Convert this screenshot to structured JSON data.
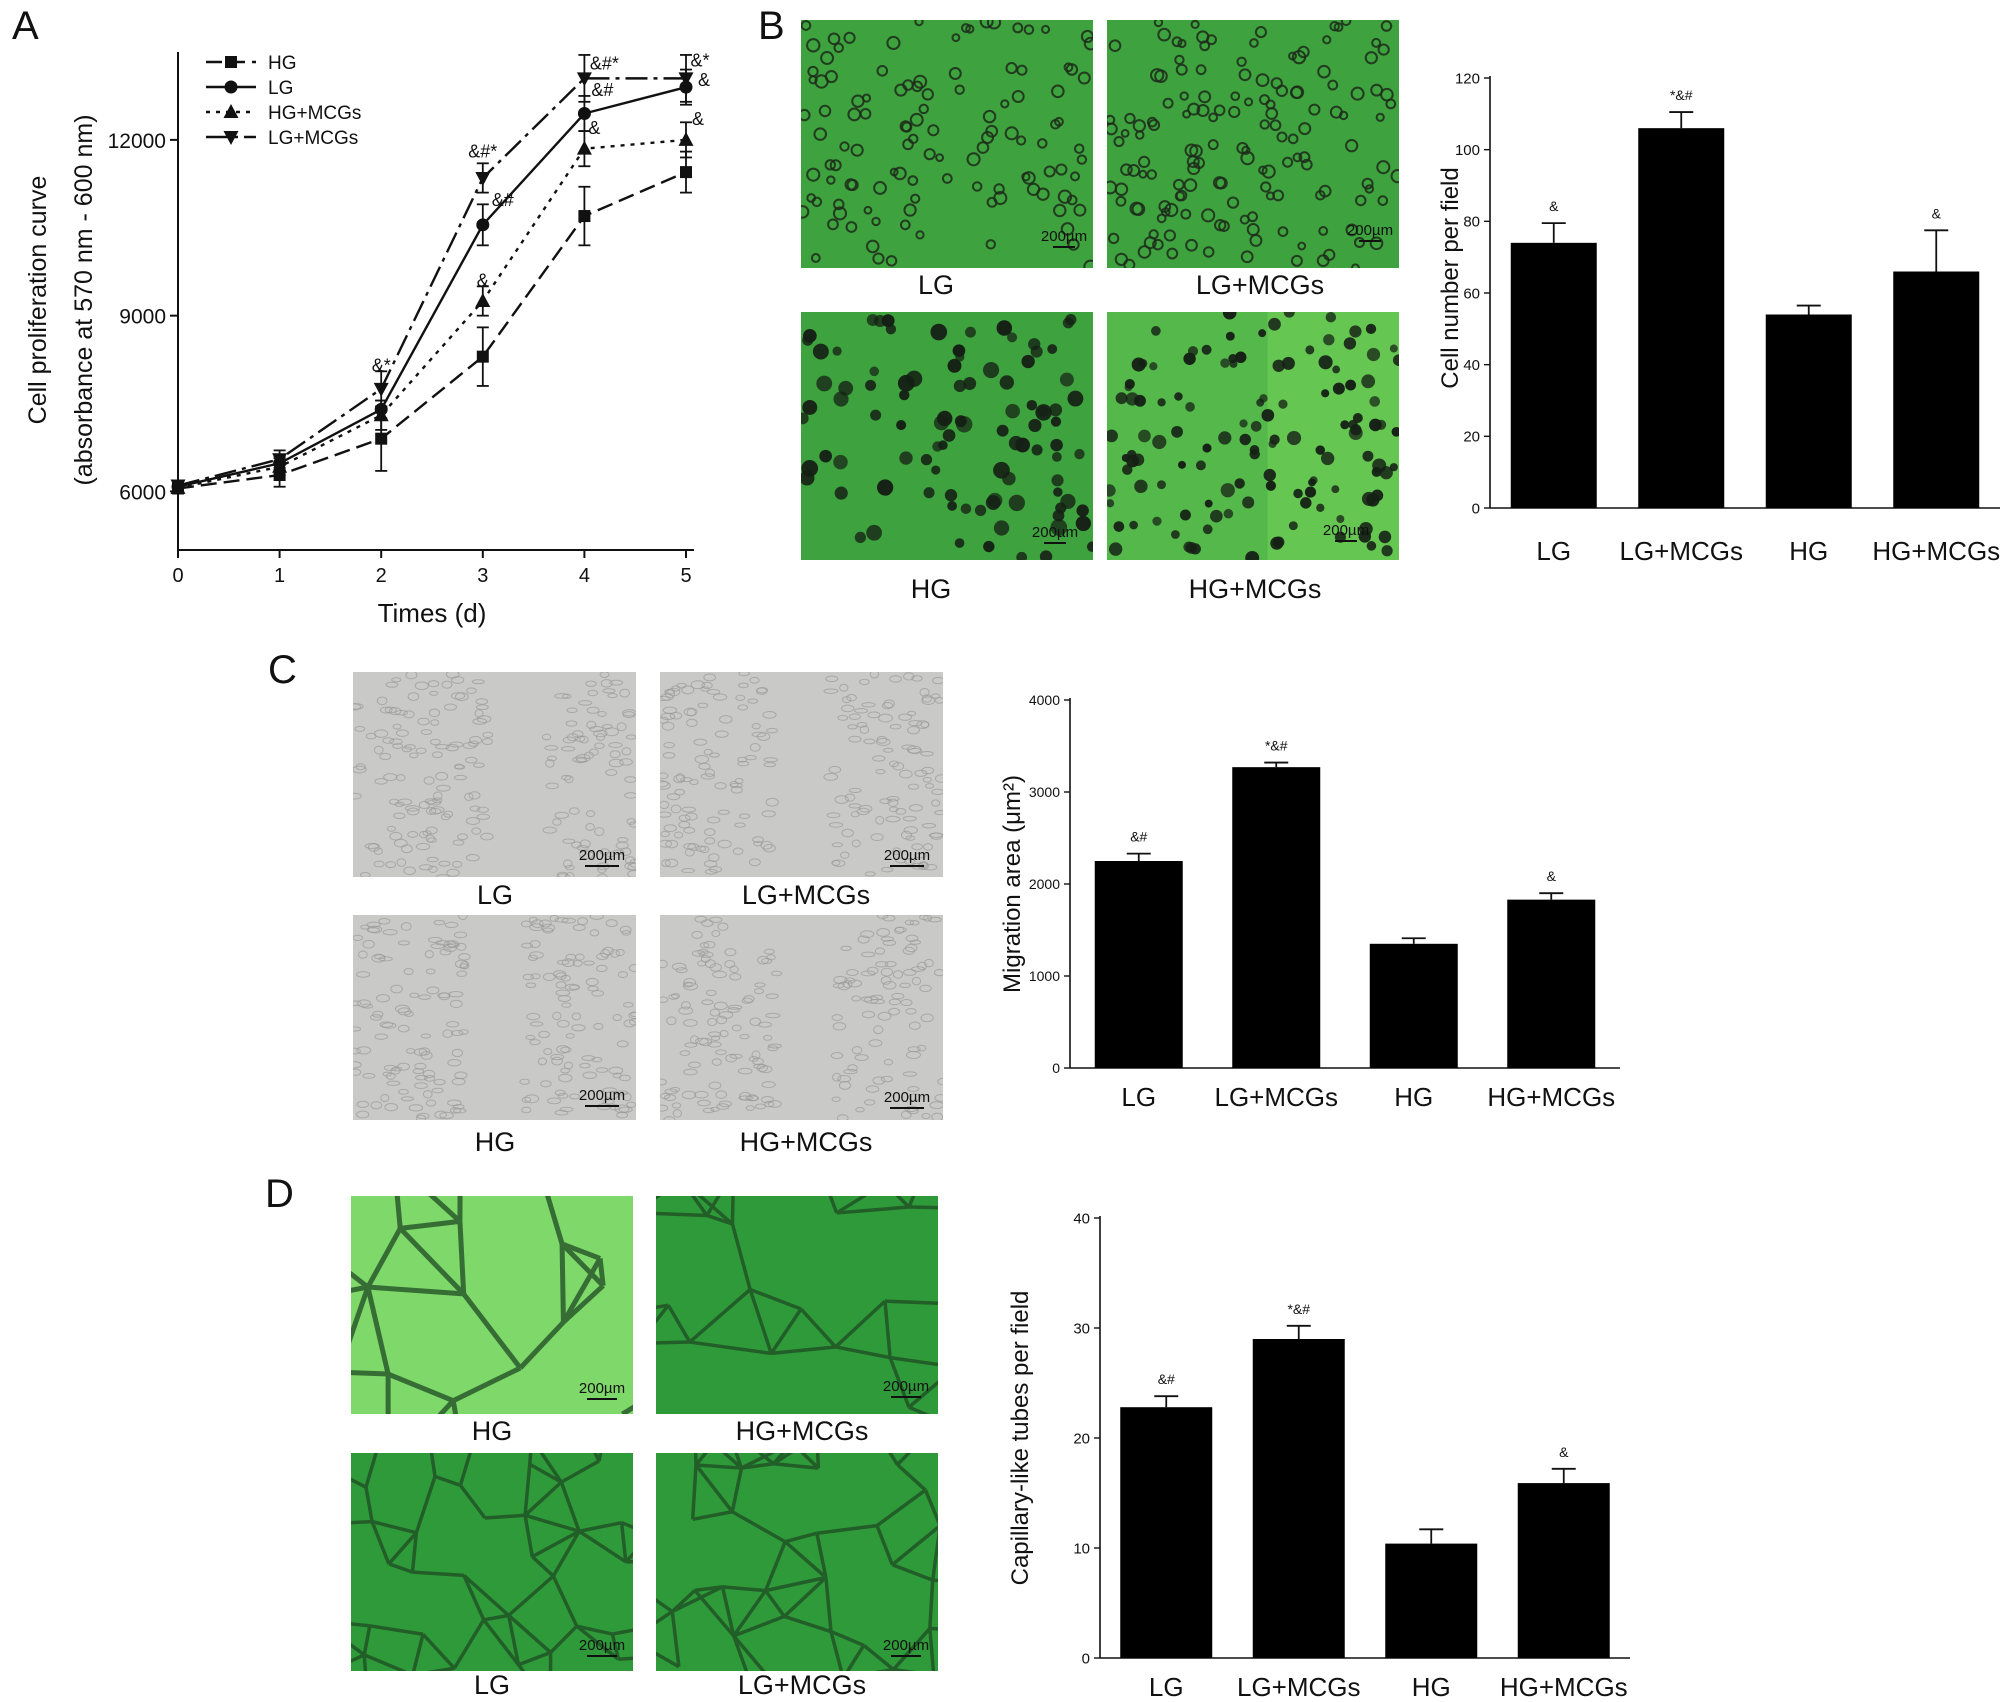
{
  "panels": {
    "a": {
      "letter": "A"
    },
    "b": {
      "letter": "B"
    },
    "c": {
      "letter": "C"
    },
    "d": {
      "letter": "D"
    }
  },
  "scale_label": "200µm",
  "images": {
    "b": [
      "LG",
      "LG+MCGs",
      "HG",
      "HG+MCGs"
    ],
    "c": [
      "LG",
      "LG+MCGs",
      "HG",
      "HG+MCGs"
    ],
    "d": [
      "HG",
      "HG+MCGs",
      "LG",
      "LG+MCGs"
    ]
  },
  "colors": {
    "bar_fill": "#000000",
    "green_bg": "#3ea23e",
    "green_bright": "#7ed86a",
    "gray_bg": "#c9c9c7"
  },
  "chart_data": [
    {
      "id": "A",
      "type": "line",
      "title": "",
      "xlabel": "Times (d)",
      "ylabel": "Cell proliferation curve",
      "ylabel2": "(absorbance at 570 nm - 600 nm)",
      "x": [
        0,
        1,
        2,
        3,
        4,
        5
      ],
      "xlim": [
        0,
        5
      ],
      "ylim": [
        5000,
        13500
      ],
      "yticks": [
        6000,
        9000,
        12000
      ],
      "grid": false,
      "legend_position": "top-left",
      "series": [
        {
          "name": "HG",
          "values": [
            6050,
            6280,
            6900,
            8300,
            10700,
            11450
          ],
          "errors": [
            80,
            200,
            550,
            500,
            500,
            350
          ],
          "marker": "square",
          "dash": "16 7"
        },
        {
          "name": "LG",
          "values": [
            6080,
            6480,
            7400,
            10550,
            12450,
            12900
          ],
          "errors": [
            70,
            120,
            150,
            350,
            300,
            300
          ],
          "marker": "circle",
          "dash": ""
        },
        {
          "name": "HG+MCGs",
          "values": [
            6060,
            6420,
            7300,
            9250,
            11850,
            12000
          ],
          "errors": [
            70,
            150,
            250,
            250,
            300,
            300
          ],
          "marker": "triangle-up",
          "dash": "4 6"
        },
        {
          "name": "LG+MCGs",
          "values": [
            6100,
            6550,
            7750,
            11350,
            13050,
            13050
          ],
          "errors": [
            70,
            150,
            300,
            250,
            400,
            400
          ],
          "marker": "triangle-down",
          "dash": "22 6 4 6"
        }
      ],
      "annotations": [
        {
          "x": 2,
          "y": 8050,
          "text": "&*"
        },
        {
          "x": 3,
          "y": 11700,
          "text": "&#*"
        },
        {
          "x": 3,
          "y": 10870,
          "text": "&#",
          "dx": 20
        },
        {
          "x": 3,
          "y": 9500,
          "text": "&"
        },
        {
          "x": 4,
          "y": 13200,
          "text": "&#*",
          "dx": 20
        },
        {
          "x": 4,
          "y": 12750,
          "text": "&#",
          "dx": 18
        },
        {
          "x": 4,
          "y": 12100,
          "text": "&",
          "dx": 10
        },
        {
          "x": 5,
          "y": 13250,
          "text": "&*",
          "dx": 14
        },
        {
          "x": 5,
          "y": 12920,
          "text": "&",
          "dx": 18
        },
        {
          "x": 5,
          "y": 12250,
          "text": "&",
          "dx": 12
        }
      ]
    },
    {
      "id": "B",
      "type": "bar",
      "title": "",
      "ylabel": "Cell number per field",
      "categories": [
        "LG",
        "LG+MCGs",
        "HG",
        "HG+MCGs"
      ],
      "values": [
        74,
        106,
        54,
        66
      ],
      "errors": [
        5.5,
        4.5,
        2.5,
        11.5
      ],
      "sig": [
        "&",
        "*&#",
        "",
        "&"
      ],
      "ylim": [
        0,
        120
      ],
      "yticks": [
        0,
        20,
        40,
        60,
        80,
        100,
        120
      ]
    },
    {
      "id": "C",
      "type": "bar",
      "title": "",
      "ylabel": "Migration area (μm²)",
      "categories": [
        "LG",
        "LG+MCGs",
        "HG",
        "HG+MCGs"
      ],
      "values": [
        2250,
        3270,
        1350,
        1830
      ],
      "errors": [
        80,
        50,
        60,
        70
      ],
      "sig": [
        "&#",
        "*&#",
        "",
        "&"
      ],
      "ylim": [
        0,
        4000
      ],
      "yticks": [
        0,
        1000,
        2000,
        3000,
        4000
      ]
    },
    {
      "id": "D",
      "type": "bar",
      "title": "",
      "ylabel": "Capillary-like tubes per field",
      "categories": [
        "LG",
        "LG+MCGs",
        "HG",
        "HG+MCGs"
      ],
      "values": [
        22.8,
        29.0,
        10.4,
        15.9
      ],
      "errors": [
        1.0,
        1.2,
        1.3,
        1.3
      ],
      "sig": [
        "&#",
        "*&#",
        "",
        "&"
      ],
      "ylim": [
        0,
        40
      ],
      "yticks": [
        0,
        10,
        20,
        30,
        40
      ]
    }
  ]
}
